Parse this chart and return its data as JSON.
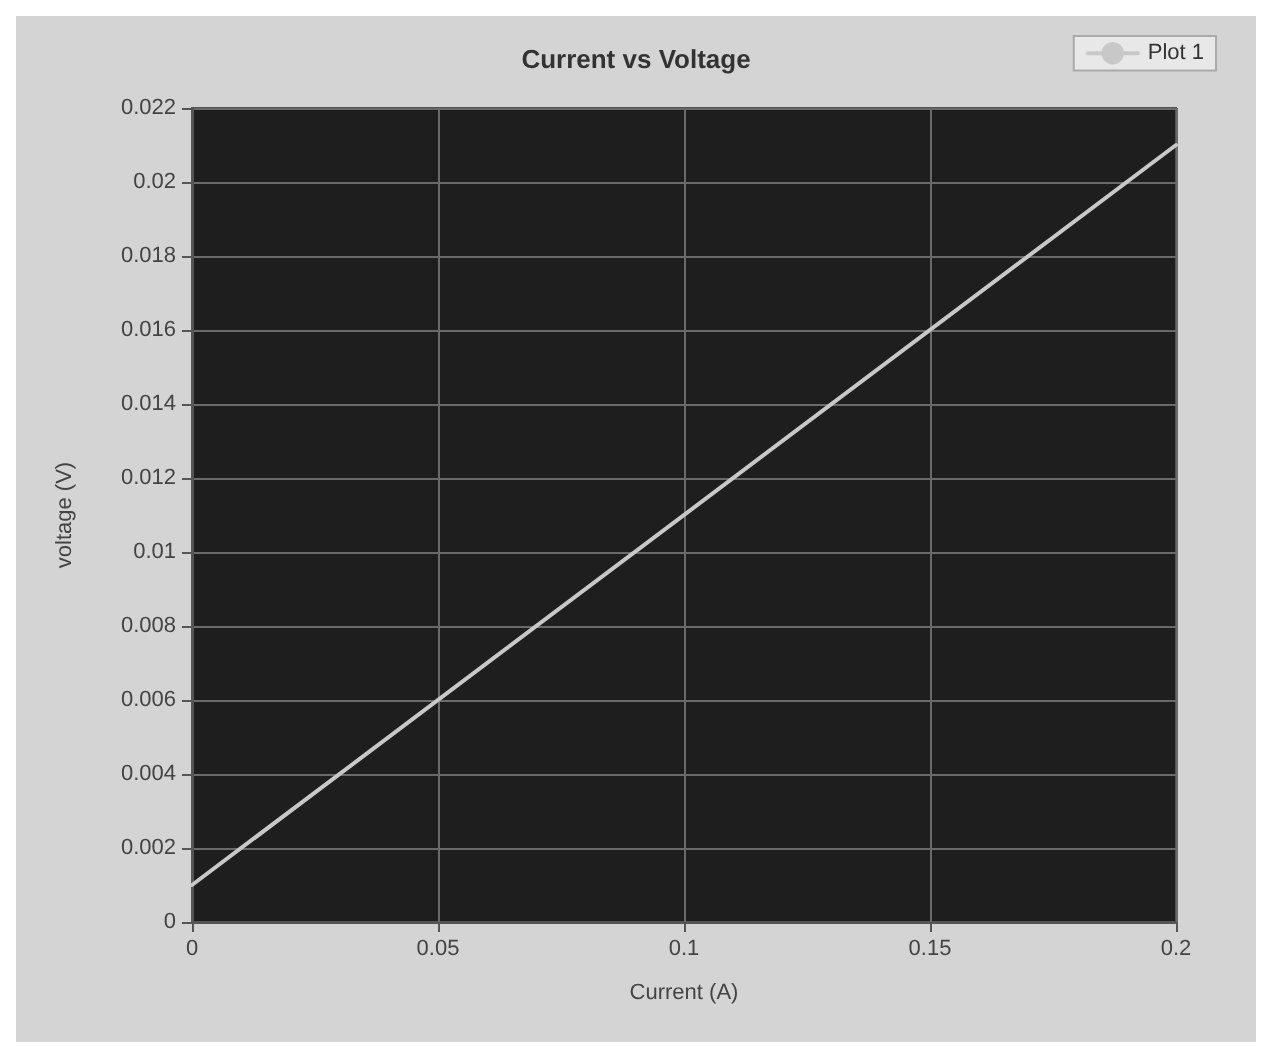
{
  "chart_data": {
    "type": "line",
    "title": "Current vs Voltage",
    "xlabel": "Current (A)",
    "ylabel": "voltage (V)",
    "x": [
      0,
      0.2
    ],
    "series": [
      {
        "name": "Plot 1",
        "color": "#c8c8c8",
        "values": [
          0.001,
          0.021
        ]
      }
    ],
    "xlim": [
      0,
      0.2
    ],
    "xticks": [
      0,
      0.05,
      0.1,
      0.15,
      0.2
    ],
    "ylim": [
      0,
      0.022
    ],
    "yticks": [
      0,
      0.002,
      0.004,
      0.006,
      0.008,
      0.01,
      0.012,
      0.014,
      0.016,
      0.018,
      0.02,
      0.022
    ],
    "grid": true,
    "legend": "top right",
    "marker": "none",
    "line_style": "solid"
  }
}
